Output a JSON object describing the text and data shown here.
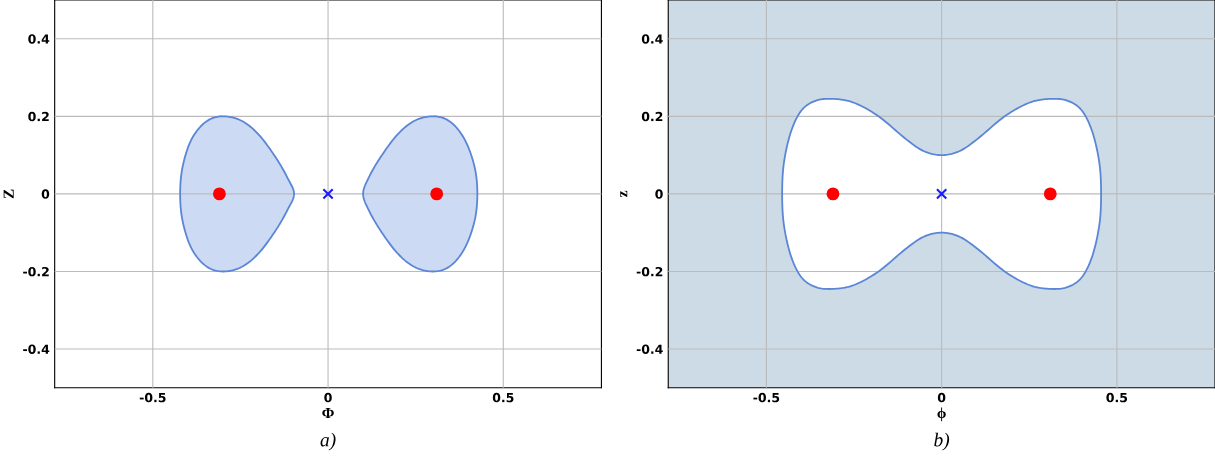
{
  "chart_data": [
    {
      "type": "area",
      "xlabel": "Φ",
      "ylabel": "Z",
      "annotations": [
        "a)"
      ],
      "xlim": [
        -0.78,
        0.78
      ],
      "ylim": [
        -0.5,
        0.5
      ],
      "xticks": [
        -0.5,
        0,
        0.5
      ],
      "yticks": [
        -0.4,
        -0.2,
        0,
        0.2,
        0.4
      ],
      "grid": true,
      "series": [
        {
          "color": "#5b86d6",
          "x": [
            -0.304,
            -0.25,
            -0.2,
            -0.15,
            -0.115,
            -0.097,
            -0.115,
            -0.15,
            -0.2,
            -0.25,
            -0.304,
            -0.35,
            -0.39,
            -0.415,
            -0.422,
            -0.415,
            -0.39,
            -0.35,
            -0.304
          ],
          "values": [
            0.2,
            0.19,
            0.155,
            0.095,
            0.04,
            0,
            -0.04,
            -0.095,
            -0.155,
            -0.19,
            -0.2,
            -0.185,
            -0.14,
            -0.07,
            0,
            0.07,
            0.14,
            0.185,
            0.2
          ]
        },
        {
          "color": "#5b86d6",
          "x": [
            0.304,
            0.25,
            0.2,
            0.15,
            0.115,
            0.1,
            0.115,
            0.15,
            0.2,
            0.25,
            0.304,
            0.35,
            0.39,
            0.418,
            0.426,
            0.418,
            0.39,
            0.35,
            0.304
          ],
          "values": [
            0.2,
            0.19,
            0.155,
            0.095,
            0.04,
            0,
            -0.04,
            -0.095,
            -0.155,
            -0.19,
            -0.2,
            -0.185,
            -0.14,
            -0.07,
            0,
            0.07,
            0.14,
            0.185,
            0.2
          ]
        },
        {
          "type": "scatter",
          "color": "#ff0000",
          "marker": "circle",
          "x": [
            -0.31,
            0.31
          ],
          "values": [
            0,
            0
          ]
        },
        {
          "type": "scatter",
          "color": "#1a1aff",
          "marker": "cross",
          "x": [
            0
          ],
          "values": [
            0
          ]
        }
      ]
    },
    {
      "type": "area",
      "xlabel": "ϕ",
      "ylabel": "z",
      "annotations": [
        "b)"
      ],
      "xlim": [
        -0.78,
        0.78
      ],
      "ylim": [
        -0.5,
        0.5
      ],
      "xticks": [
        -0.5,
        0,
        0.5
      ],
      "yticks": [
        -0.4,
        -0.2,
        0,
        0.2,
        0.4
      ],
      "grid": true,
      "bands": [
        {
          "axis": "y",
          "from": -0.5,
          "to": 0.5,
          "color": "#ccdbe6"
        }
      ],
      "series": [
        {
          "color": "#5b86d6",
          "x": [
            0.455,
            0.45,
            0.43,
            0.4,
            0.36,
            0.31,
            0.25,
            0.18,
            0.1,
            0.05,
            0,
            -0.05,
            -0.1,
            -0.18,
            -0.25,
            -0.31,
            -0.36,
            -0.4,
            -0.43,
            -0.45,
            -0.455,
            -0.45,
            -0.43,
            -0.4,
            -0.36,
            -0.31,
            -0.25,
            -0.18,
            -0.1,
            -0.05,
            0,
            0.05,
            0.1,
            0.18,
            0.25,
            0.31,
            0.36,
            0.4,
            0.43,
            0.45,
            0.455
          ],
          "values": [
            0,
            0.08,
            0.16,
            0.215,
            0.24,
            0.245,
            0.235,
            0.2,
            0.14,
            0.11,
            0.1,
            0.11,
            0.14,
            0.2,
            0.235,
            0.245,
            0.24,
            0.215,
            0.16,
            0.08,
            0,
            -0.08,
            -0.16,
            -0.215,
            -0.24,
            -0.245,
            -0.235,
            -0.2,
            -0.14,
            -0.11,
            -0.1,
            -0.11,
            -0.14,
            -0.2,
            -0.235,
            -0.245,
            -0.24,
            -0.215,
            -0.16,
            -0.08,
            0
          ]
        },
        {
          "type": "scatter",
          "color": "#ff0000",
          "marker": "circle",
          "x": [
            -0.31,
            0.31
          ],
          "values": [
            0,
            0
          ]
        },
        {
          "type": "scatter",
          "color": "#1a1aff",
          "marker": "cross",
          "x": [
            0
          ],
          "values": [
            0
          ]
        }
      ]
    }
  ]
}
